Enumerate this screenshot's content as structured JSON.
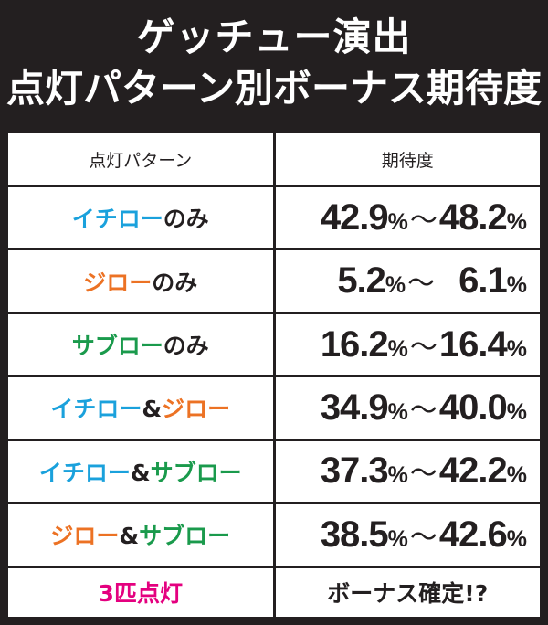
{
  "header": {
    "title_line1": "ゲッチュー演出",
    "title_line2": "点灯パターン別ボーナス期待度"
  },
  "table": {
    "col_pattern": "点灯パターン",
    "col_expect": "期待度",
    "rows": [
      {
        "parts": [
          "イチロー",
          "のみ"
        ],
        "low": "42.9",
        "high": "48.2"
      },
      {
        "parts": [
          "ジロー",
          "のみ"
        ],
        "low": "5.2",
        "high": "6.1"
      },
      {
        "parts": [
          "サブロー",
          "のみ"
        ],
        "low": "16.2",
        "high": "16.4"
      },
      {
        "parts": [
          "イチロー",
          "&",
          "ジロー"
        ],
        "low": "34.9",
        "high": "40.0"
      },
      {
        "parts": [
          "イチロー",
          "&",
          "サブロー"
        ],
        "low": "37.3",
        "high": "42.2"
      },
      {
        "parts": [
          "ジロー",
          "&",
          "サブロー"
        ],
        "low": "38.5",
        "high": "42.6"
      }
    ],
    "percent": "%",
    "tilde": "〜",
    "last_row": {
      "label": "3匹点灯",
      "value": "ボーナス確定!?"
    }
  },
  "colors": {
    "background": "#231f20",
    "ichiro": "#1aa1dc",
    "jiro": "#ec7224",
    "saburo": "#1a9a4c",
    "highlight": "#e4007f"
  }
}
